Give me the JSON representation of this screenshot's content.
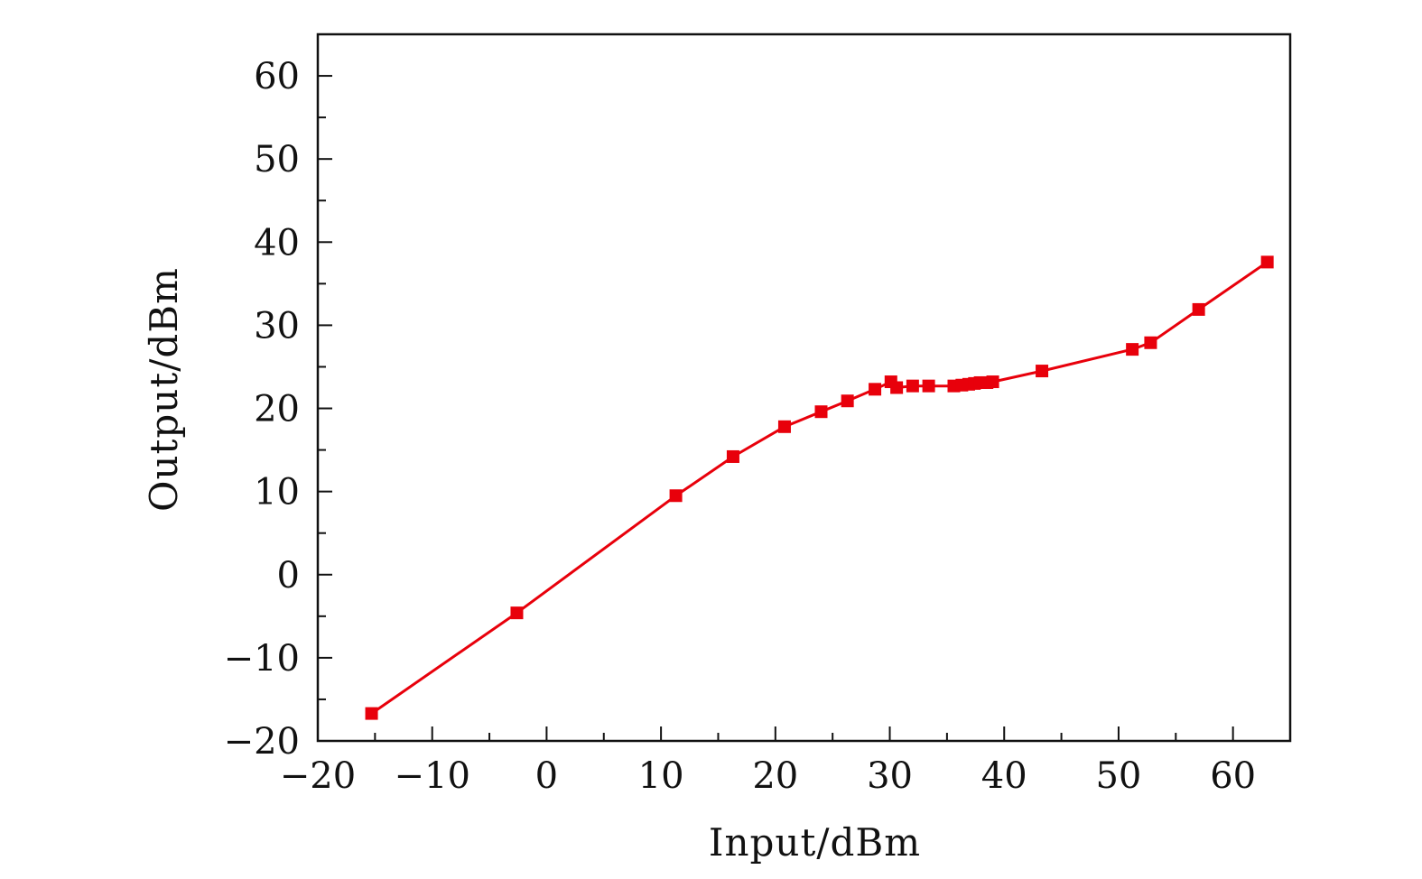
{
  "chart_data": {
    "type": "line",
    "title": "",
    "xlabel": "Input/dBm",
    "ylabel": "Output/dBm",
    "xlim": [
      -20,
      65
    ],
    "ylim": [
      -20,
      65
    ],
    "xticks": [
      -20,
      -10,
      0,
      10,
      20,
      30,
      40,
      50,
      60
    ],
    "yticks": [
      -20,
      -10,
      0,
      10,
      20,
      30,
      40,
      50,
      60
    ],
    "xtick_labels": [
      "−20",
      "−10",
      "0",
      "10",
      "20",
      "30",
      "40",
      "50",
      "60"
    ],
    "ytick_labels": [
      "−20",
      "−10",
      "0",
      "10",
      "20",
      "30",
      "40",
      "50",
      "60"
    ],
    "grid": false,
    "legend": "none",
    "series": [
      {
        "name": "Output",
        "color": "#e8000b",
        "marker": "square",
        "x": [
          -15.3,
          -2.6,
          11.3,
          16.3,
          20.8,
          24.0,
          26.3,
          28.7,
          30.1,
          30.6,
          32.0,
          33.4,
          35.6,
          36.3,
          36.9,
          37.4,
          37.9,
          38.5,
          39.0,
          43.3,
          51.2,
          52.8,
          57.0,
          63.0
        ],
        "y": [
          -16.7,
          -4.6,
          9.5,
          14.2,
          17.8,
          19.6,
          20.9,
          22.3,
          23.2,
          22.5,
          22.7,
          22.7,
          22.7,
          22.8,
          22.9,
          23.0,
          23.1,
          23.1,
          23.2,
          24.5,
          27.1,
          27.9,
          31.9,
          37.6
        ]
      }
    ]
  }
}
